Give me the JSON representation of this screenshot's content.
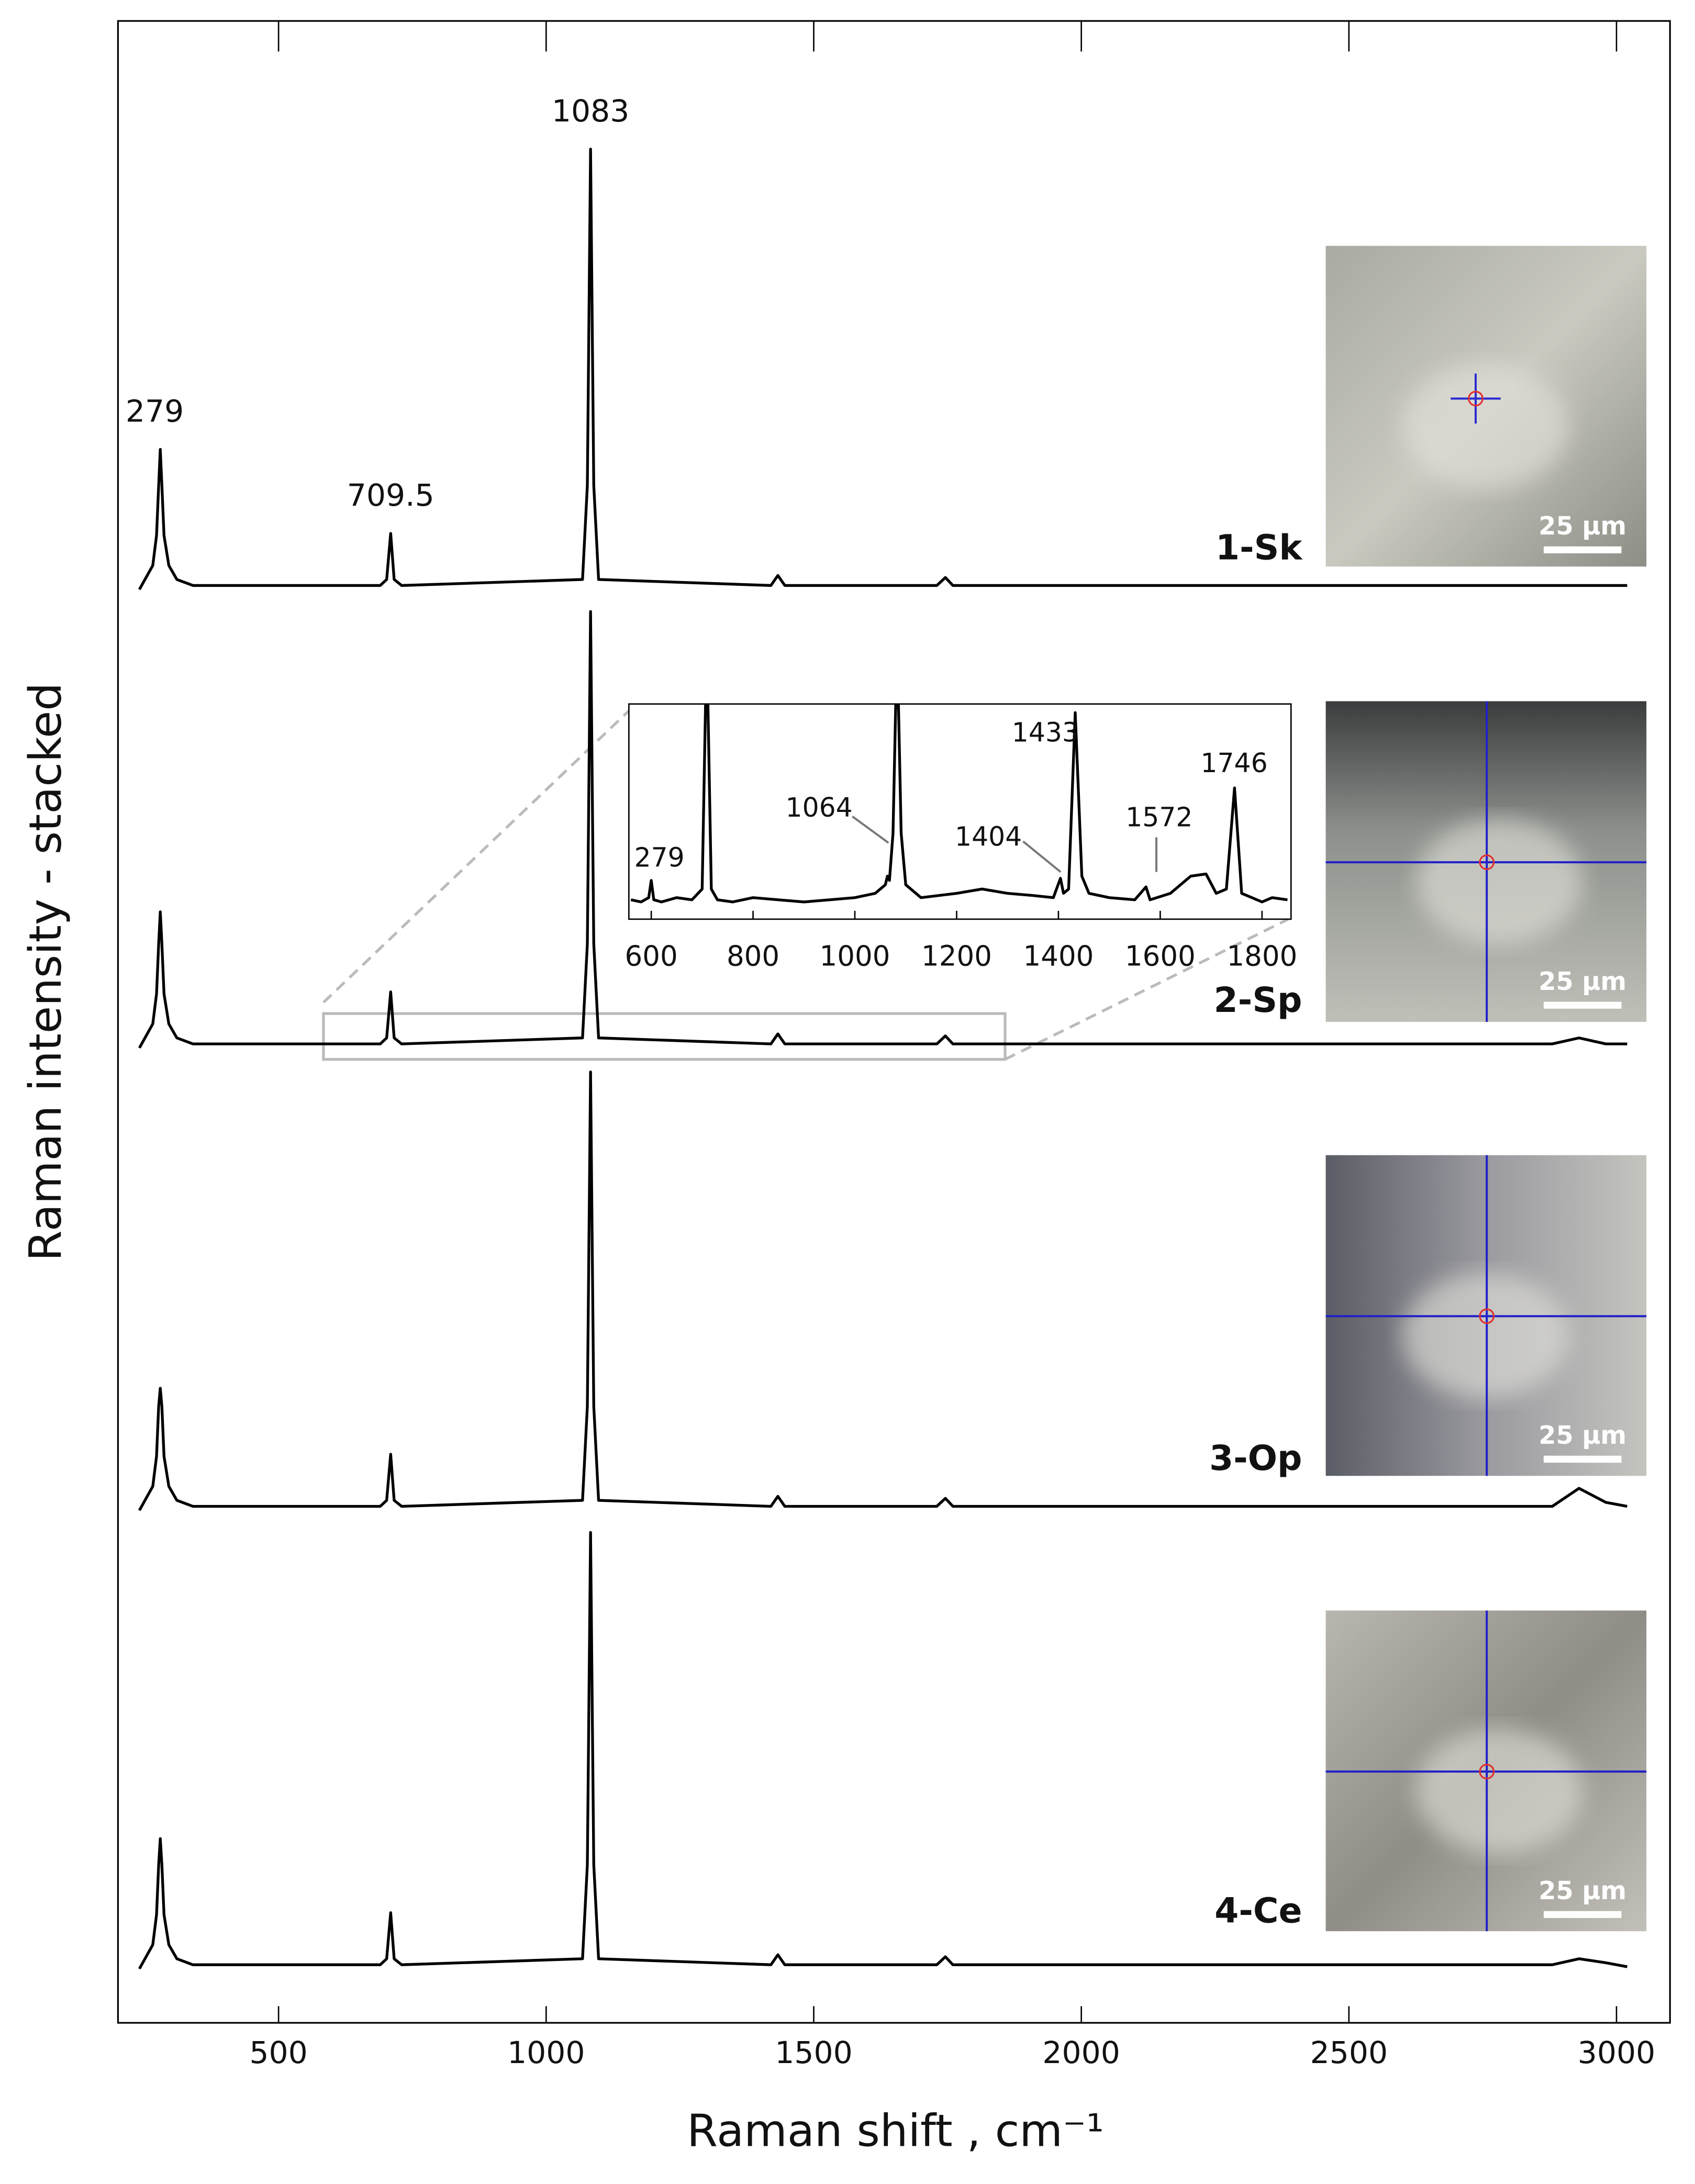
{
  "chart_data": [
    {
      "type": "line",
      "xlabel": "Raman shift , cm⁻¹",
      "ylabel": "Raman intensity - stacked",
      "xlim": [
        200,
        3100
      ],
      "xticks": [
        500,
        1000,
        1500,
        2000,
        2500,
        3000
      ],
      "ylim": [
        0,
        100
      ],
      "x": [
        240,
        265,
        272,
        276,
        279,
        282,
        286,
        295,
        310,
        340,
        690,
        702,
        709.5,
        716,
        730,
        1068,
        1077,
        1083,
        1089,
        1098,
        1420,
        1433,
        1446,
        1730,
        1746,
        1760,
        2880,
        2930,
        2980,
        3020
      ],
      "series": [
        {
          "name": "1-Sk",
          "color": "#000000",
          "values": [
            71.6,
            72.8,
            74.3,
            76.8,
            78.6,
            76.8,
            74.3,
            72.8,
            72.1,
            71.8,
            71.8,
            72.1,
            74.4,
            72.1,
            71.8,
            72.1,
            76.8,
            93.6,
            76.8,
            72.1,
            71.8,
            72.3,
            71.8,
            71.8,
            72.2,
            71.8,
            71.8,
            71.8,
            71.8,
            71.8
          ]
        },
        {
          "name": "2-Sp",
          "color": "#000000",
          "values": [
            48.7,
            49.9,
            51.4,
            53.9,
            55.5,
            53.9,
            51.4,
            49.9,
            49.2,
            48.9,
            48.9,
            49.2,
            51.5,
            49.2,
            48.9,
            49.2,
            53.9,
            70.5,
            53.9,
            49.2,
            48.9,
            49.4,
            48.9,
            48.9,
            49.3,
            48.9,
            48.9,
            49.2,
            48.9,
            48.9
          ]
        },
        {
          "name": "3-Op",
          "color": "#000000",
          "values": [
            25.6,
            26.8,
            28.3,
            30.8,
            31.7,
            30.8,
            28.3,
            26.8,
            26.1,
            25.8,
            25.8,
            26.1,
            28.4,
            26.1,
            25.8,
            26.1,
            30.8,
            47.5,
            30.8,
            26.1,
            25.8,
            26.3,
            25.8,
            25.8,
            26.2,
            25.8,
            25.8,
            26.7,
            26.0,
            25.8
          ]
        },
        {
          "name": "4-Ce",
          "color": "#000000",
          "values": [
            2.7,
            3.9,
            5.4,
            7.9,
            9.2,
            7.9,
            5.4,
            3.9,
            3.2,
            2.9,
            2.9,
            3.2,
            5.5,
            3.2,
            2.9,
            3.2,
            7.9,
            24.5,
            7.9,
            3.2,
            2.9,
            3.4,
            2.9,
            2.9,
            3.3,
            2.9,
            2.9,
            3.2,
            3.0,
            2.8
          ]
        }
      ],
      "annotations": [
        "279",
        "709.5",
        "1083"
      ]
    },
    {
      "type": "line",
      "xlim": [
        556,
        1857
      ],
      "xticks": [
        600,
        800,
        1000,
        1200,
        1400,
        1600,
        1800
      ],
      "ylim": [
        0,
        100
      ],
      "x": [
        560,
        580,
        595,
        600,
        605,
        620,
        650,
        680,
        700,
        709,
        718,
        730,
        760,
        800,
        850,
        900,
        950,
        1000,
        1040,
        1060,
        1064,
        1068,
        1075,
        1083,
        1091,
        1100,
        1130,
        1200,
        1250,
        1300,
        1350,
        1390,
        1404,
        1410,
        1420,
        1433,
        1446,
        1460,
        1500,
        1550,
        1572,
        1580,
        1620,
        1660,
        1690,
        1710,
        1730,
        1746,
        1760,
        1780,
        1800,
        1820,
        1850
      ],
      "series": [
        {
          "name": "2-Sp",
          "color": "#000000",
          "values": [
            9,
            8,
            10,
            18,
            9,
            8,
            10,
            9,
            14,
            130,
            14,
            9,
            8,
            10,
            9,
            8,
            9,
            10,
            12,
            16,
            20,
            18,
            40,
            130,
            40,
            16,
            10,
            12,
            14,
            12,
            11,
            10,
            19,
            12,
            14,
            96,
            20,
            12,
            10,
            9,
            15,
            9,
            12,
            20,
            21,
            12,
            14,
            61,
            12,
            10,
            8,
            10,
            9
          ]
        }
      ],
      "annotations": [
        "279",
        "1064",
        "1404",
        "1433",
        "1572",
        "1746"
      ]
    }
  ],
  "micrographs": [
    {
      "scale_bar": "25 µm"
    },
    {
      "scale_bar": "25 µm"
    },
    {
      "scale_bar": "25 µm"
    },
    {
      "scale_bar": "25 µm"
    }
  ]
}
